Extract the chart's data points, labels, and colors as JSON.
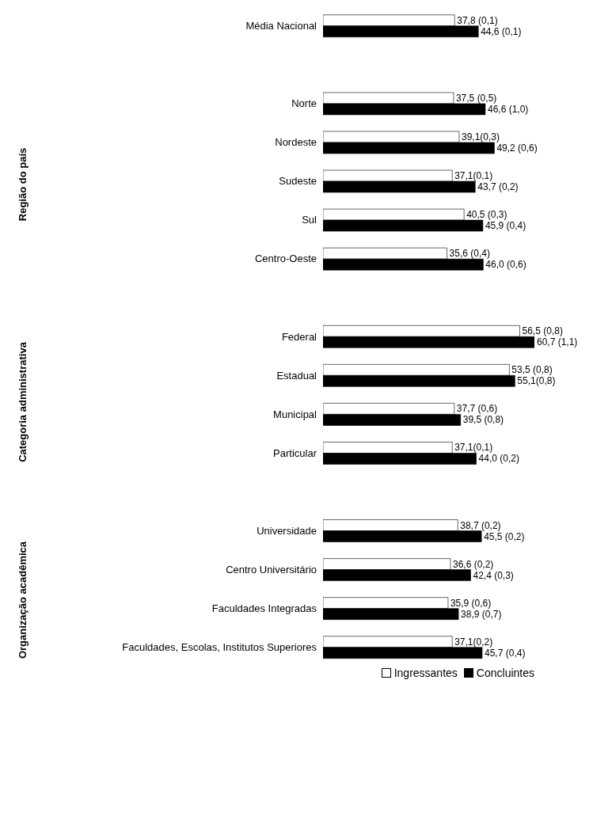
{
  "chart_data": {
    "type": "bar",
    "orientation": "horizontal",
    "categories": [
      "Média Nacional",
      null,
      "Norte",
      "Nordeste",
      "Sudeste",
      "Sul",
      "Centro-Oeste",
      null,
      "Federal",
      "Estadual",
      "Municipal",
      "Particular",
      null,
      "Universidade",
      "Centro Universitário",
      "Faculdades Integradas",
      "Faculdades, Escolas, Institutos Superiores"
    ],
    "series": [
      {
        "name": "Ingressantes",
        "color": "#ffffff",
        "values": [
          37.8,
          null,
          37.5,
          39.1,
          37.1,
          40.5,
          35.6,
          null,
          56.5,
          53.5,
          37.7,
          37.1,
          null,
          38.7,
          36.6,
          35.9,
          37.1
        ],
        "value_labels": [
          "37,8 (0,1)",
          null,
          "37,5 (0,5)",
          "39,1(0,3)",
          "37,1(0,1)",
          "40,5 (0,3)",
          "35,6 (0,4)",
          null,
          "56,5 (0,8)",
          "53,5 (0,8)",
          "37,7 (0,6)",
          "37,1(0,1)",
          null,
          "38,7 (0,2)",
          "36,6 (0,2)",
          "35,9 (0,6)",
          "37,1(0,2)"
        ]
      },
      {
        "name": "Concluintes",
        "color": "#000000",
        "values": [
          44.6,
          null,
          46.6,
          49.2,
          43.7,
          45.9,
          46.0,
          null,
          60.7,
          55.1,
          39.5,
          44.0,
          null,
          45.5,
          42.4,
          38.9,
          45.7
        ],
        "value_labels": [
          "44,6 (0,1)",
          null,
          "46,6 (1,0)",
          "49,2 (0,6)",
          "43,7 (0,2)",
          "45,9 (0,4)",
          "46,0 (0,6)",
          null,
          "60,7 (1,1)",
          "55,1(0,8)",
          "39,5 (0,8)",
          "44,0 (0,2)",
          null,
          "45,5 (0,2)",
          "42,4 (0,3)",
          "38,9 (0,7)",
          "45,7 (0,4)"
        ]
      }
    ],
    "annotations": [
      "Região do país",
      "Categoria administrativa",
      "Organização acadêmica"
    ],
    "legend": "bottom right"
  }
}
